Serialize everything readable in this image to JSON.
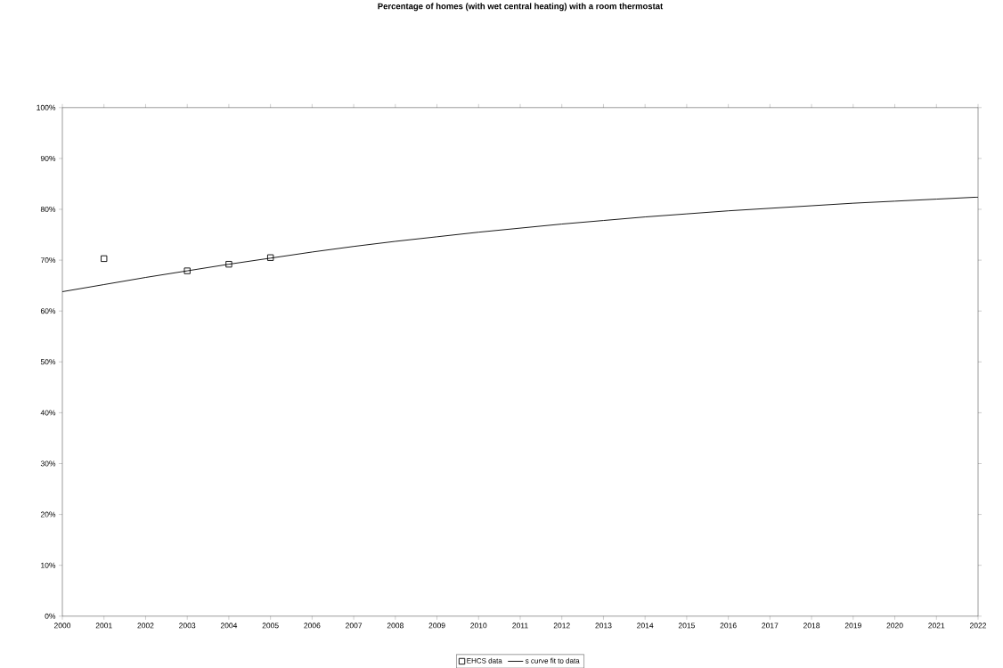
{
  "chart_data": {
    "type": "scatter",
    "title": "Percentage of homes (with wet central heating) with a room thermostat",
    "series": [
      {
        "name": "EHCS data",
        "color": "#000000",
        "marker": "square",
        "x": [
          2001,
          2003,
          2004,
          2005
        ],
        "values": [
          70.3,
          67.9,
          69.2,
          70.5
        ]
      },
      {
        "name": "s curve fit to data",
        "type": "line",
        "color": "#000000",
        "marker": "none",
        "line_style": "solid",
        "x": [
          2000,
          2001,
          2002,
          2003,
          2004,
          2005,
          2006,
          2007,
          2008,
          2009,
          2010,
          2011,
          2012,
          2013,
          2014,
          2015,
          2016,
          2017,
          2018,
          2019,
          2020,
          2021,
          2022
        ],
        "values": [
          63.8,
          65.2,
          66.6,
          67.9,
          69.2,
          70.4,
          71.6,
          72.7,
          73.7,
          74.6,
          75.5,
          76.3,
          77.1,
          77.8,
          78.5,
          79.1,
          79.7,
          80.2,
          80.7,
          81.2,
          81.6,
          82.0,
          82.4
        ]
      }
    ],
    "xlim": [
      2000,
      2022
    ],
    "xticks": [
      2000,
      2001,
      2002,
      2003,
      2004,
      2005,
      2006,
      2007,
      2008,
      2009,
      2010,
      2011,
      2012,
      2013,
      2014,
      2015,
      2016,
      2017,
      2018,
      2019,
      2020,
      2021,
      2022
    ],
    "ylim": [
      0,
      100
    ],
    "yticks": [
      {
        "value": 0,
        "label": "0%"
      },
      {
        "value": 10,
        "label": "10%"
      },
      {
        "value": 20,
        "label": "20%"
      },
      {
        "value": 30,
        "label": "30%"
      },
      {
        "value": 40,
        "label": "40%"
      },
      {
        "value": 50,
        "label": "50%"
      },
      {
        "value": 60,
        "label": "60%"
      },
      {
        "value": 70,
        "label": "70%"
      },
      {
        "value": 80,
        "label": "80%"
      },
      {
        "value": 90,
        "label": "90%"
      },
      {
        "value": 100,
        "label": "100%"
      }
    ],
    "grid": false,
    "legend": "bottom"
  }
}
